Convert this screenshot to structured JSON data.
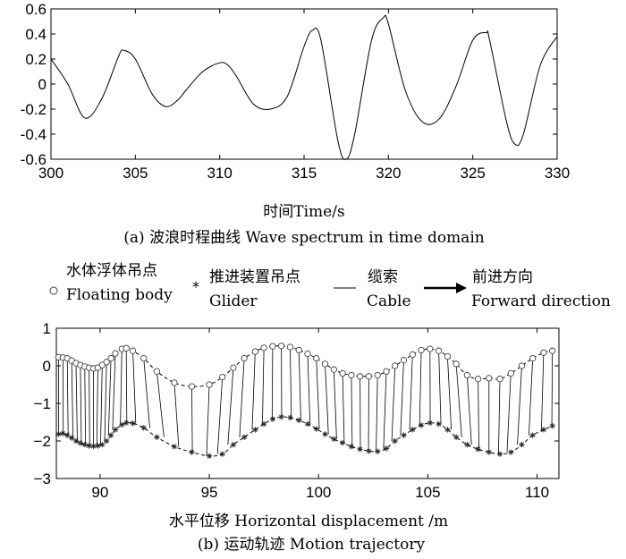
{
  "chart_data": [
    {
      "type": "line",
      "xlabel": "时间Time/s",
      "caption": "(a) 波浪时程曲线 Wave spectrum in time domain",
      "xlim": [
        300,
        330
      ],
      "ylim": [
        -0.6,
        0.6
      ],
      "xticks": [
        "300",
        "305",
        "310",
        "315",
        "320",
        "325",
        "330"
      ],
      "yticks": [
        "0.6",
        "0.4",
        "0.2",
        "0",
        "-0.2",
        "-0.4",
        "-0.6"
      ],
      "series": [
        {
          "x": [
            300,
            301,
            302,
            303,
            304,
            304.3,
            305,
            306,
            306.8,
            307.5,
            308,
            309,
            310,
            310.5,
            311,
            312,
            313,
            314,
            315,
            315.5,
            316,
            317,
            317.5,
            318,
            319,
            319.7,
            320,
            321,
            322,
            323,
            324,
            325,
            325.8,
            326,
            327,
            327.5,
            328,
            329,
            330
          ],
          "y": [
            0.2,
            0.0,
            -0.27,
            -0.12,
            0.22,
            0.27,
            0.2,
            -0.08,
            -0.18,
            -0.13,
            -0.05,
            0.1,
            0.17,
            0.15,
            0.06,
            -0.16,
            -0.2,
            -0.1,
            0.3,
            0.43,
            0.35,
            -0.45,
            -0.6,
            -0.4,
            0.35,
            0.53,
            0.48,
            -0.05,
            -0.3,
            -0.28,
            -0.02,
            0.35,
            0.41,
            0.35,
            -0.3,
            -0.48,
            -0.4,
            0.15,
            0.38
          ]
        }
      ]
    },
    {
      "type": "line",
      "xlabel": "水平位移 Horizontal displacement /m",
      "caption": "(b) 运动轨迹 Motion trajectory",
      "xlim": [
        88,
        111
      ],
      "ylim": [
        -3,
        1
      ],
      "xticks": [
        "90",
        "95",
        "100",
        "105",
        "110"
      ],
      "yticks": [
        "1",
        "0",
        "−1",
        "−2",
        "−3"
      ],
      "legend": [
        {
          "symbol": "circle",
          "label_cn": "水体浮体吊点",
          "label_en": "Floating body"
        },
        {
          "symbol": "star",
          "label_cn": "推进装置吊点",
          "label_en": "Glider"
        },
        {
          "symbol": "line",
          "label_cn": "缆索",
          "label_en": "Cable"
        },
        {
          "symbol": "arrow",
          "label_cn": "前进方向",
          "label_en": "Forward direction"
        }
      ],
      "series": [
        {
          "name": "Floating body",
          "marker": "circle",
          "x": [
            88.1,
            88.3,
            88.5,
            88.7,
            88.9,
            89.1,
            89.3,
            89.5,
            89.7,
            89.9,
            90.1,
            90.3,
            90.5,
            90.7,
            91.0,
            91.2,
            91.5,
            92.0,
            92.6,
            93.4,
            94.2,
            95.0,
            95.6,
            96.1,
            96.6,
            97.1,
            97.5,
            97.9,
            98.3,
            98.7,
            99.1,
            99.5,
            99.9,
            100.3,
            100.7,
            101.1,
            101.5,
            101.9,
            102.3,
            102.7,
            103.1,
            103.5,
            103.9,
            104.3,
            104.7,
            105.1,
            105.5,
            105.9,
            106.3,
            106.8,
            107.3,
            107.8,
            108.3,
            108.8,
            109.3,
            109.8,
            110.3,
            110.7
          ],
          "y": [
            0.23,
            0.22,
            0.2,
            0.14,
            0.07,
            0.02,
            -0.02,
            -0.05,
            -0.07,
            -0.05,
            0.02,
            0.1,
            0.2,
            0.33,
            0.45,
            0.47,
            0.4,
            0.2,
            -0.15,
            -0.45,
            -0.55,
            -0.5,
            -0.3,
            -0.05,
            0.2,
            0.38,
            0.48,
            0.52,
            0.53,
            0.5,
            0.42,
            0.32,
            0.2,
            0.05,
            -0.1,
            -0.2,
            -0.25,
            -0.28,
            -0.28,
            -0.25,
            -0.15,
            0.0,
            0.15,
            0.3,
            0.42,
            0.45,
            0.4,
            0.25,
            0.05,
            -0.25,
            -0.35,
            -0.33,
            -0.35,
            -0.2,
            0.0,
            0.2,
            0.35,
            0.4
          ]
        },
        {
          "name": "Glider",
          "marker": "star",
          "x": [
            88.1,
            88.3,
            88.5,
            88.7,
            88.9,
            89.1,
            89.3,
            89.5,
            89.7,
            89.9,
            90.1,
            90.3,
            90.5,
            90.7,
            91.0,
            91.2,
            91.5,
            92.0,
            92.6,
            93.4,
            94.2,
            95.0,
            95.6,
            96.1,
            96.6,
            97.1,
            97.5,
            97.9,
            98.3,
            98.7,
            99.1,
            99.5,
            99.9,
            100.3,
            100.7,
            101.1,
            101.5,
            101.9,
            102.3,
            102.7,
            103.1,
            103.5,
            103.9,
            104.3,
            104.7,
            105.1,
            105.5,
            105.9,
            106.3,
            106.8,
            107.3,
            107.8,
            108.3,
            108.8,
            109.3,
            109.8,
            110.3,
            110.7
          ],
          "y": [
            -1.82,
            -1.8,
            -1.85,
            -1.92,
            -2.0,
            -2.06,
            -2.1,
            -2.13,
            -2.14,
            -2.13,
            -2.1,
            -2.0,
            -1.85,
            -1.7,
            -1.57,
            -1.52,
            -1.53,
            -1.65,
            -1.9,
            -2.15,
            -2.3,
            -2.4,
            -2.35,
            -2.1,
            -1.9,
            -1.7,
            -1.55,
            -1.42,
            -1.36,
            -1.38,
            -1.45,
            -1.55,
            -1.68,
            -1.82,
            -1.95,
            -2.05,
            -2.15,
            -2.22,
            -2.27,
            -2.28,
            -2.2,
            -2.0,
            -1.85,
            -1.7,
            -1.58,
            -1.52,
            -1.55,
            -1.7,
            -1.9,
            -2.1,
            -2.22,
            -2.3,
            -2.35,
            -2.3,
            -2.1,
            -1.85,
            -1.7,
            -1.6
          ]
        }
      ]
    }
  ]
}
